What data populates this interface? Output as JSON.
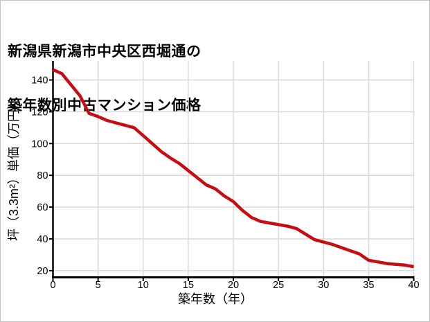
{
  "page": {
    "title_line1": "新潟県新潟市中央区西堀通の",
    "title_line2": "築年数別中古マンション価格"
  },
  "chart_data": {
    "type": "line",
    "title": "新潟県新潟市中央区西堀通の築年数別中古マンション価格",
    "xlabel": "築年数（年）",
    "ylabel": "坪（3.3m²）単価（万円）",
    "x": [
      0,
      1,
      2,
      3,
      4,
      5,
      6,
      7,
      8,
      9,
      10,
      11,
      12,
      13,
      14,
      15,
      16,
      17,
      18,
      19,
      20,
      21,
      22,
      23,
      24,
      25,
      26,
      27,
      28,
      29,
      30,
      31,
      32,
      33,
      34,
      35,
      36,
      37,
      38,
      39,
      40
    ],
    "values": [
      146.5,
      144,
      137,
      130,
      119,
      117,
      114.5,
      113,
      111.5,
      110,
      105,
      100,
      95,
      91,
      87.5,
      83,
      78.5,
      74,
      71.5,
      67,
      63.5,
      58,
      53.5,
      51,
      50,
      49,
      48,
      46.5,
      43,
      39.5,
      38,
      36.5,
      34.5,
      32.5,
      30.5,
      26.5,
      25.5,
      24.5,
      24,
      23.5,
      22.5
    ],
    "x_ticks": [
      0,
      5,
      10,
      15,
      20,
      25,
      30,
      35,
      40
    ],
    "y_ticks": [
      20,
      40,
      60,
      80,
      100,
      120,
      140
    ],
    "xlim": [
      0,
      40
    ],
    "ylim": [
      15.8,
      152
    ],
    "grid": true,
    "legend_position": "none",
    "line_color": "#c80d12",
    "grid_color": "#d9d9d9",
    "axis_color": "#000000",
    "tick_label_color": "#000000"
  }
}
